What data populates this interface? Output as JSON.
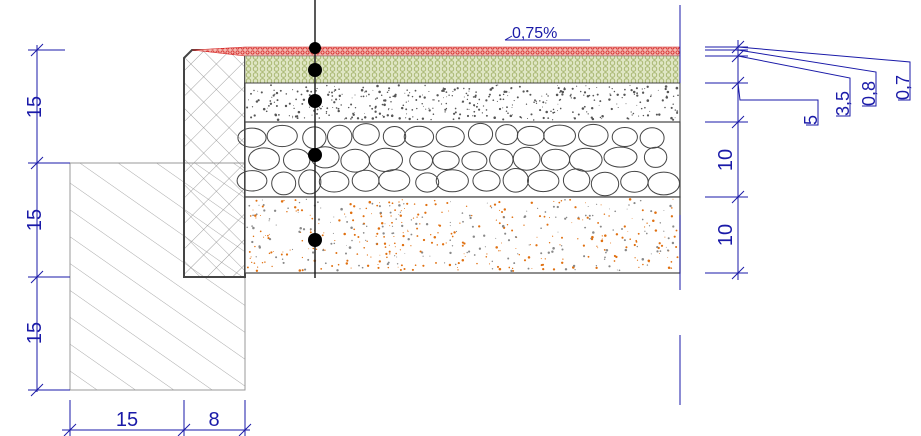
{
  "slope": {
    "label": "0,75%"
  },
  "dimensions": {
    "left": [
      "15",
      "15",
      "15"
    ],
    "bottom": [
      "15",
      "8"
    ],
    "right": [
      "10",
      "10"
    ],
    "layers": [
      "5",
      "3,5",
      "0,8",
      "0,7"
    ]
  },
  "colors": {
    "dimension": "#1a1aa8",
    "wearing_course": "#d42020",
    "binder_course": "#b9c98c",
    "aggregate_dots": "#e07010",
    "line": "#333333"
  }
}
